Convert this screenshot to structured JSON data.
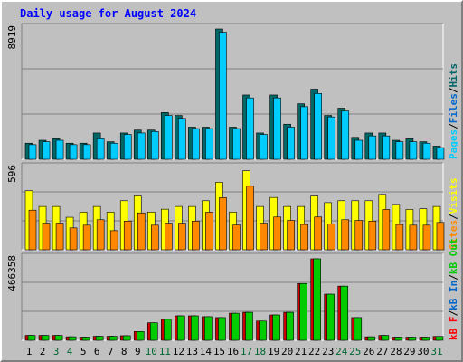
{
  "title": "Daily usage for August 2024",
  "colors": {
    "background": "#c0c0c0",
    "pages": "#00ccff",
    "hits": "#006666",
    "visits": "#ffff00",
    "sites": "#ff8800",
    "kb": "#00cc00",
    "kb_shadow": "#cc0000",
    "weekend_label": "#006633",
    "weekday_label": "#000000"
  },
  "legend": {
    "top": [
      {
        "text": "Pages",
        "color": "#00ccff"
      },
      {
        "text": "/",
        "color": "#000000"
      },
      {
        "text": "Files",
        "color": "#0066cc"
      },
      {
        "text": "/",
        "color": "#000000"
      },
      {
        "text": "Hits",
        "color": "#006666"
      }
    ],
    "middle": [
      {
        "text": "Sites",
        "color": "#ff8800"
      },
      {
        "text": "/",
        "color": "#000000"
      },
      {
        "text": "Visits",
        "color": "#ffff00"
      }
    ],
    "bottom": [
      {
        "text": "kB F",
        "color": "#ff0000"
      },
      {
        "text": "/",
        "color": "#000000"
      },
      {
        "text": "kB In",
        "color": "#0066cc"
      },
      {
        "text": "/",
        "color": "#000000"
      },
      {
        "text": "kB Out",
        "color": "#00cc00"
      }
    ]
  },
  "chart_data": [
    {
      "type": "bar",
      "panel": "hits-files-pages",
      "ymax_label": "8919",
      "ylim": [
        0,
        8919
      ],
      "categories": [
        "1",
        "2",
        "3",
        "4",
        "5",
        "6",
        "7",
        "8",
        "9",
        "10",
        "11",
        "12",
        "13",
        "14",
        "15",
        "16",
        "17",
        "18",
        "19",
        "20",
        "21",
        "22",
        "23",
        "24",
        "25",
        "26",
        "27",
        "28",
        "29",
        "30",
        "31"
      ],
      "series": [
        {
          "name": "Hits",
          "values": [
            1100,
            1300,
            1400,
            1100,
            1100,
            1800,
            1200,
            1800,
            2000,
            2000,
            3200,
            3000,
            2200,
            2200,
            8919,
            2200,
            4400,
            1800,
            4400,
            2400,
            3800,
            4800,
            3000,
            3500,
            1500,
            1800,
            1800,
            1300,
            1400,
            1200,
            900
          ]
        },
        {
          "name": "Pages",
          "values": [
            1000,
            1200,
            1300,
            1000,
            1000,
            1400,
            1100,
            1700,
            1800,
            1900,
            3000,
            2800,
            2100,
            2100,
            8700,
            2100,
            4200,
            1700,
            4200,
            2200,
            3600,
            4500,
            2900,
            3300,
            1300,
            1600,
            1600,
            1200,
            1200,
            1100,
            800
          ]
        }
      ]
    },
    {
      "type": "bar",
      "panel": "visits-sites",
      "ymax_label": "596",
      "ylim": [
        0,
        596
      ],
      "categories": [
        "1",
        "2",
        "3",
        "4",
        "5",
        "6",
        "7",
        "8",
        "9",
        "10",
        "11",
        "12",
        "13",
        "14",
        "15",
        "16",
        "17",
        "18",
        "19",
        "20",
        "21",
        "22",
        "23",
        "24",
        "25",
        "26",
        "27",
        "28",
        "29",
        "30",
        "31"
      ],
      "series": [
        {
          "name": "Visits",
          "values": [
            432,
            317,
            317,
            238,
            276,
            317,
            276,
            359,
            394,
            276,
            297,
            317,
            317,
            359,
            494,
            276,
            578,
            317,
            383,
            317,
            317,
            393,
            345,
            359,
            359,
            359,
            405,
            332,
            295,
            300,
            317
          ]
        },
        {
          "name": "Sites",
          "values": [
            290,
            195,
            195,
            160,
            180,
            220,
            140,
            210,
            270,
            180,
            195,
            195,
            210,
            275,
            381,
            181,
            465,
            195,
            240,
            215,
            185,
            240,
            190,
            220,
            215,
            210,
            295,
            185,
            180,
            180,
            200
          ]
        }
      ]
    },
    {
      "type": "bar",
      "panel": "kb",
      "ymax_label": "466358",
      "ylim": [
        0,
        466358
      ],
      "categories": [
        "1",
        "2",
        "3",
        "4",
        "5",
        "6",
        "7",
        "8",
        "9",
        "10",
        "11",
        "12",
        "13",
        "14",
        "15",
        "16",
        "17",
        "18",
        "19",
        "20",
        "21",
        "22",
        "23",
        "24",
        "25",
        "26",
        "27",
        "28",
        "29",
        "30",
        "31"
      ],
      "series": [
        {
          "name": "kB F",
          "values": [
            28000,
            28000,
            28000,
            20000,
            18000,
            23000,
            23000,
            26000,
            50000,
            100000,
            120000,
            140000,
            140000,
            135000,
            130000,
            155000,
            160000,
            110000,
            145000,
            160000,
            325000,
            466358,
            264000,
            310000,
            130000,
            20000,
            28000,
            18000,
            18000,
            18000,
            22000
          ]
        },
        {
          "name": "kB Out",
          "values": [
            28000,
            28000,
            28000,
            20000,
            18000,
            23000,
            23000,
            26000,
            50000,
            100000,
            120000,
            140000,
            140000,
            135000,
            130000,
            155000,
            160000,
            110000,
            145000,
            160000,
            325000,
            466358,
            264000,
            310000,
            130000,
            20000,
            28000,
            18000,
            18000,
            18000,
            22000
          ]
        }
      ]
    }
  ],
  "weekend_days": [
    "3",
    "4",
    "10",
    "11",
    "17",
    "18",
    "24",
    "25",
    "31"
  ]
}
